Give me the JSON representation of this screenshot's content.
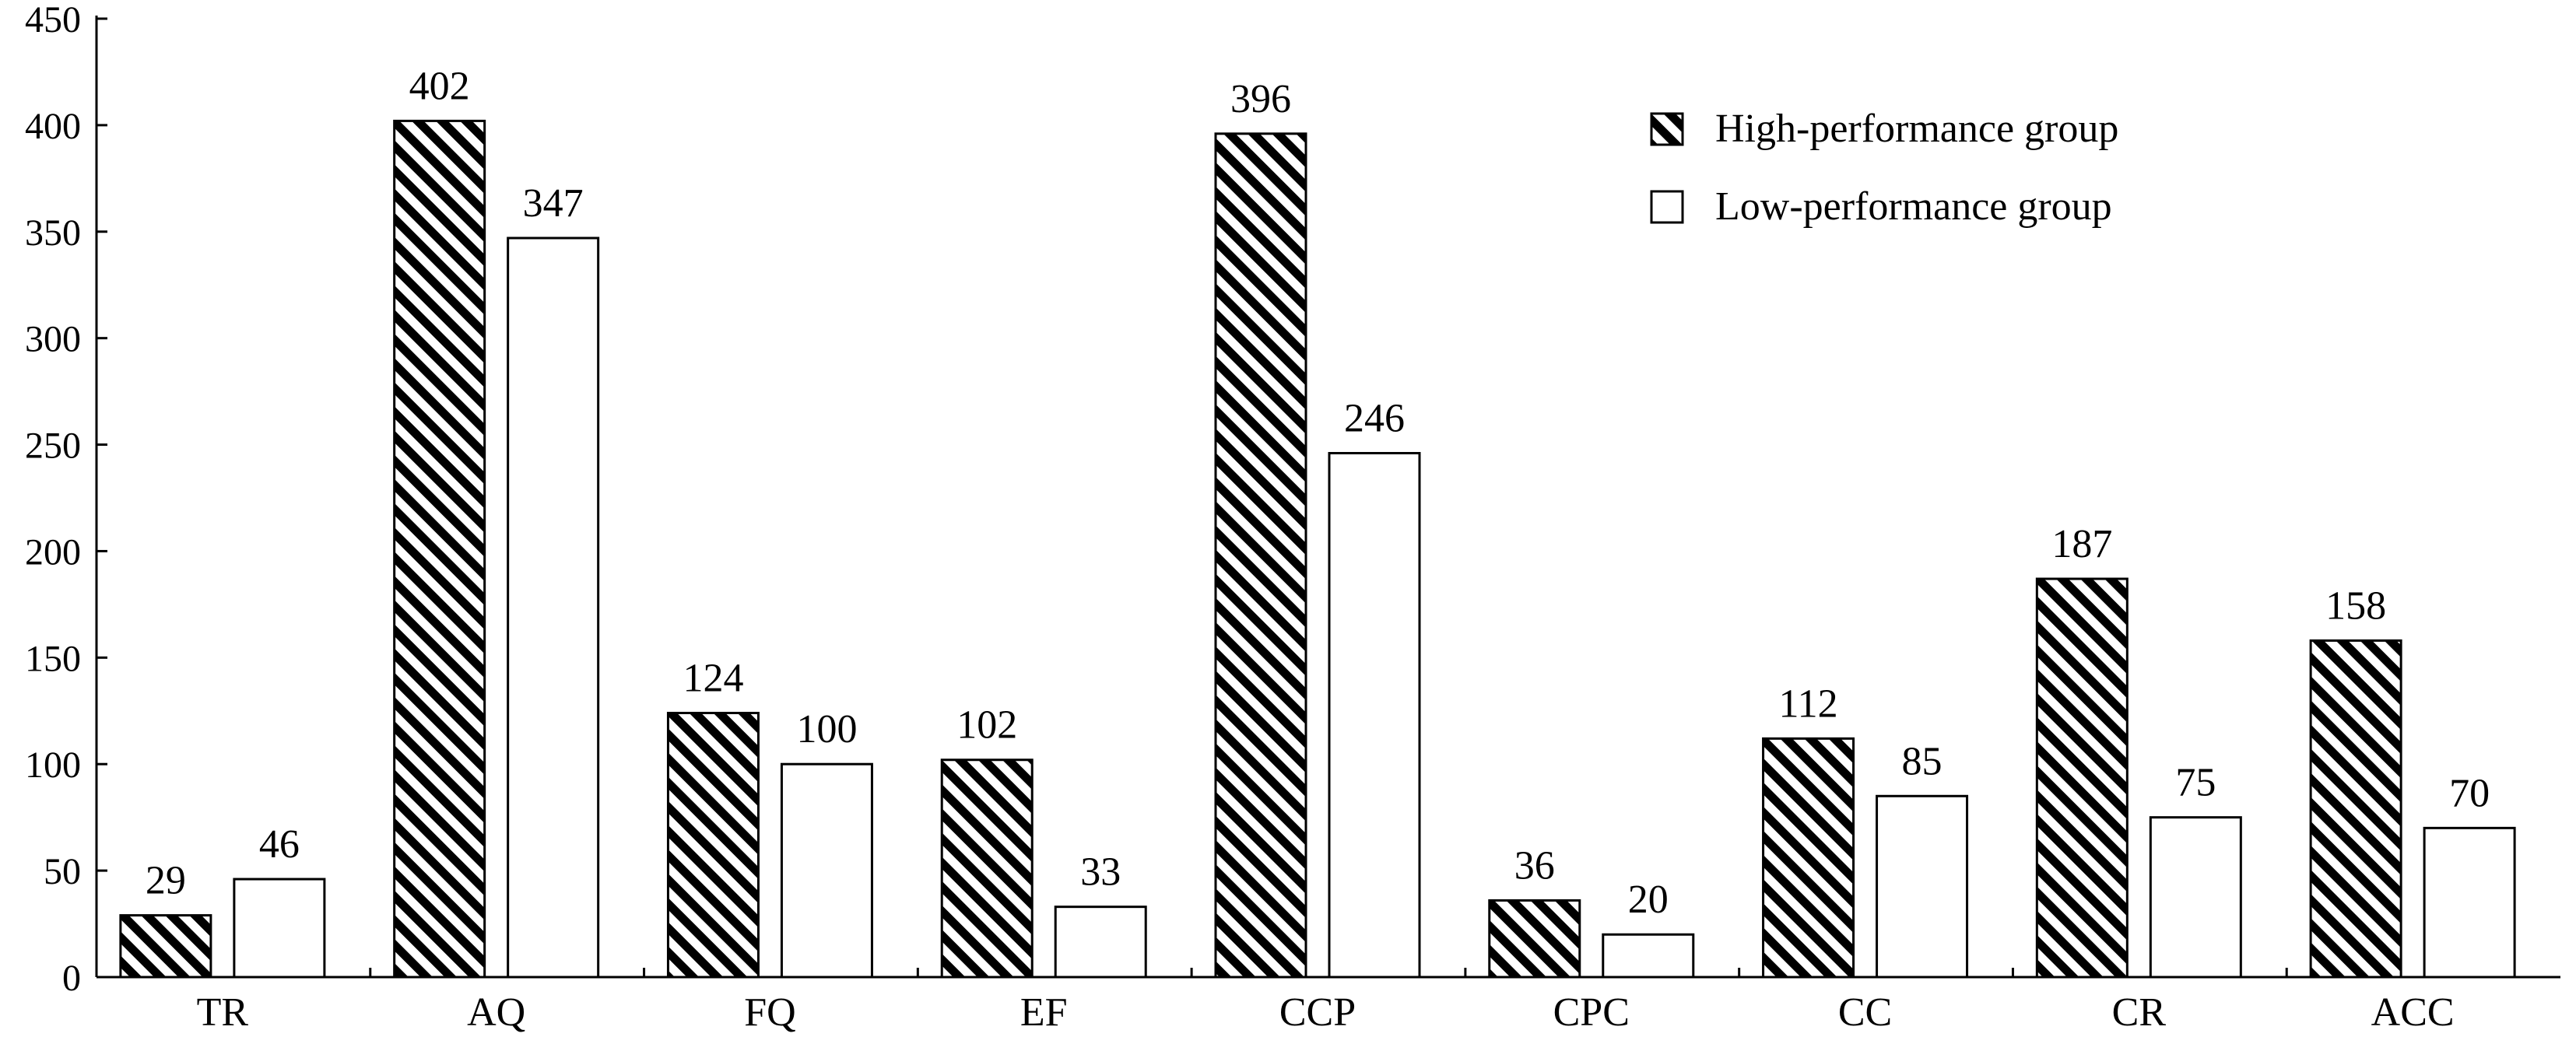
{
  "chart_data": {
    "type": "bar",
    "title": "",
    "xlabel": "",
    "ylabel": "",
    "categories": [
      "TR",
      "AQ",
      "FQ",
      "EF",
      "CCP",
      "CPC",
      "CC",
      "CR",
      "ACC"
    ],
    "series": [
      {
        "name": "High-performance group",
        "fill": "hatched",
        "values": [
          29,
          402,
          124,
          102,
          396,
          36,
          112,
          187,
          158
        ]
      },
      {
        "name": "Low-performance group",
        "fill": "white",
        "values": [
          46,
          347,
          100,
          33,
          246,
          20,
          85,
          75,
          70
        ]
      }
    ],
    "ylim": [
      0,
      450
    ],
    "yticks": [
      "0",
      "50",
      "100",
      "150",
      "200",
      "250",
      "300",
      "350",
      "400",
      "450"
    ],
    "grid": false,
    "legend_position": "top-right",
    "data_labels": true
  },
  "colors": {
    "ink": "#000000",
    "background": "#ffffff"
  }
}
